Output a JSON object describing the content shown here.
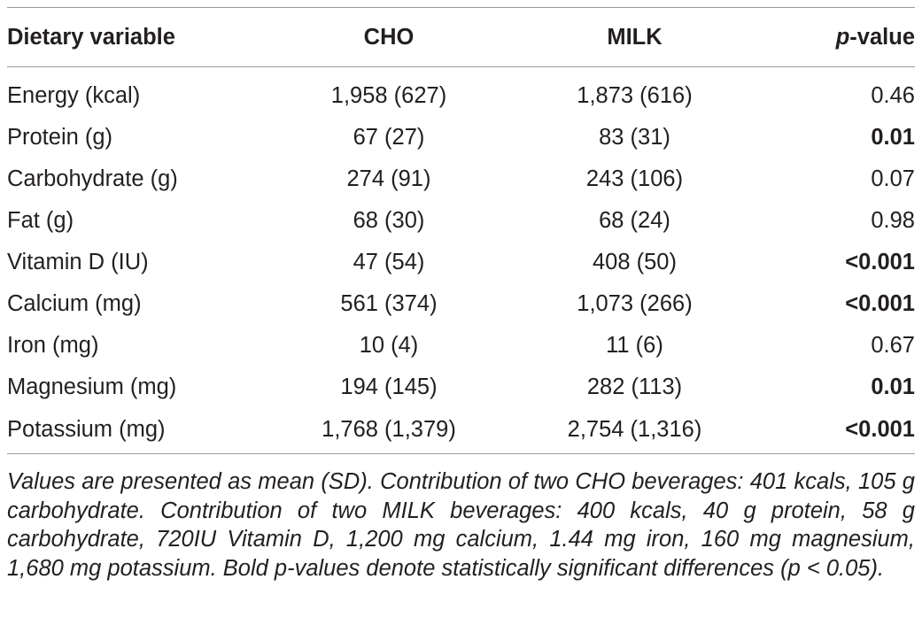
{
  "table": {
    "headers": {
      "variable": "Dietary variable",
      "cho": "CHO",
      "milk": "MILK",
      "p_italic": "p",
      "p_suffix": "-value"
    },
    "rows": [
      {
        "variable": "Energy (kcal)",
        "cho": "1,958 (627)",
        "milk": "1,873 (616)",
        "p": "0.46",
        "significant": false
      },
      {
        "variable": "Protein (g)",
        "cho": "67 (27)",
        "milk": "83 (31)",
        "p": "0.01",
        "significant": true
      },
      {
        "variable": "Carbohydrate (g)",
        "cho": "274 (91)",
        "milk": "243 (106)",
        "p": "0.07",
        "significant": false
      },
      {
        "variable": "Fat (g)",
        "cho": "68 (30)",
        "milk": "68 (24)",
        "p": "0.98",
        "significant": false
      },
      {
        "variable": "Vitamin D (IU)",
        "cho": "47 (54)",
        "milk": "408 (50)",
        "p": "<0.001",
        "significant": true
      },
      {
        "variable": "Calcium (mg)",
        "cho": "561 (374)",
        "milk": "1,073 (266)",
        "p": "<0.001",
        "significant": true
      },
      {
        "variable": "Iron (mg)",
        "cho": "10 (4)",
        "milk": "11 (6)",
        "p": "0.67",
        "significant": false
      },
      {
        "variable": "Magnesium (mg)",
        "cho": "194 (145)",
        "milk": "282 (113)",
        "p": "0.01",
        "significant": true
      },
      {
        "variable": "Potassium (mg)",
        "cho": "1,768 (1,379)",
        "milk": "2,754 (1,316)",
        "p": "<0.001",
        "significant": true
      }
    ],
    "footnote": "Values are presented as mean (SD). Contribution of two CHO beverages: 401 kcals, 105 g carbohydrate. Contribution of two MILK beverages: 400 kcals, 40 g protein, 58 g carbohydrate, 720IU Vitamin D, 1,200 mg calcium, 1.44 mg iron, 160 mg magnesium, 1,680 mg potassium. Bold p-values denote statistically significant differences (p < 0.05)."
  }
}
